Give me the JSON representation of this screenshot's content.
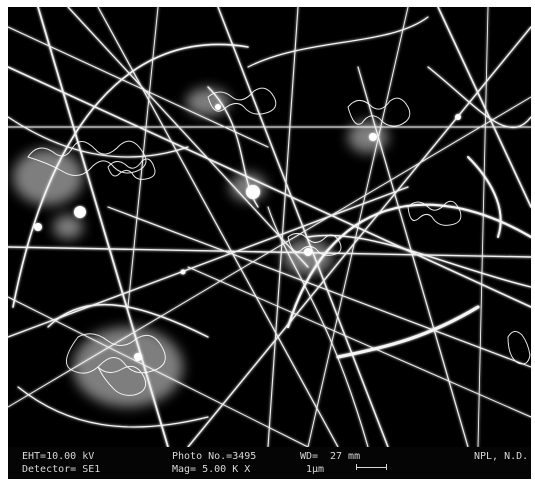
{
  "image": {
    "subject": "scanning electron micrograph of nanowire network",
    "colors": {
      "background": "#000000",
      "fibers": "#f2f2f2"
    }
  },
  "databar": {
    "eht": "EHT=10.00 kV",
    "detector": "Detector= SE1",
    "photo_no": "Photo No.=3495",
    "mag": "Mag=  5.00 K X",
    "wd_label": "WD=",
    "wd_value": "27 mm",
    "scale": "1μm",
    "lab": "NPL, N.D."
  }
}
